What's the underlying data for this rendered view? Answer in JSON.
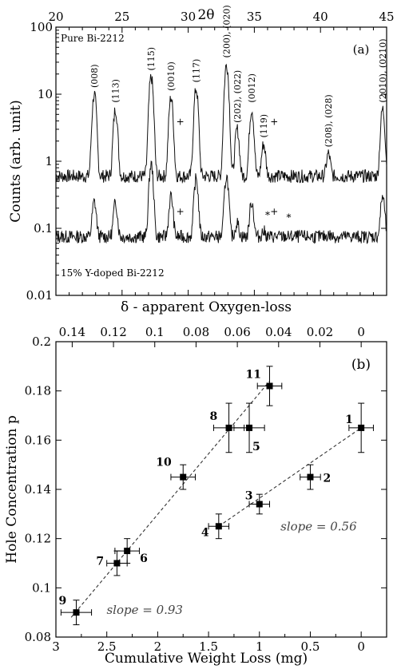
{
  "chart_data": [
    {
      "type": "line",
      "panel_label": "(a)",
      "top_axis_label": "2θ",
      "ylabel": "Counts (arb. unit)",
      "xlim": [
        20,
        45
      ],
      "ylim": [
        0.01,
        100
      ],
      "yscale": "log",
      "x_ticks": [
        "20",
        "25",
        "30",
        "35",
        "40",
        "45"
      ],
      "y_ticks": [
        "0.01",
        "0.1",
        "1",
        "10",
        "100"
      ],
      "annotations": [
        "Pure Bi-2212",
        "15% Y-doped Bi-2212"
      ],
      "peak_labels": [
        "(008)",
        "(113)",
        "(115)",
        "(0010)",
        "(117)",
        "(200), (020)",
        "(202), (022)",
        "(0012)",
        "(119)",
        "(208), (028)",
        "(2010), (0210)"
      ],
      "peaks": [
        {
          "x": 22.9,
          "upper": 10,
          "lower": 0.25
        },
        {
          "x": 24.5,
          "upper": 6,
          "lower": 0.24
        },
        {
          "x": 27.2,
          "upper": 18,
          "lower": 0.9
        },
        {
          "x": 28.7,
          "upper": 9,
          "lower": 0.3
        },
        {
          "x": 30.6,
          "upper": 12,
          "lower": 0.55
        },
        {
          "x": 32.9,
          "upper": 28,
          "lower": 0.6
        },
        {
          "x": 33.7,
          "upper": 3,
          "lower": 0.12
        },
        {
          "x": 34.8,
          "upper": 6,
          "lower": 0.25
        },
        {
          "x": 35.7,
          "upper": 1.8,
          "lower": 0.09
        },
        {
          "x": 40.6,
          "upper": 1.3,
          "lower": 0.08
        },
        {
          "x": 44.7,
          "upper": 6,
          "lower": 0.3
        }
      ],
      "impurity_markers": [
        {
          "symbol": "+",
          "x": 29.4,
          "y": 3.5
        },
        {
          "symbol": "+",
          "x": 36.5,
          "y": 3.5
        },
        {
          "symbol": "+",
          "x": 29.4,
          "y": 0.16
        },
        {
          "symbol": "+",
          "x": 36.5,
          "y": 0.16
        },
        {
          "symbol": "*",
          "x": 36.0,
          "y": 0.14
        },
        {
          "symbol": "*",
          "x": 37.6,
          "y": 0.13
        }
      ],
      "series": [
        {
          "name": "Pure Bi-2212",
          "baseline": 0.6
        },
        {
          "name": "15% Y-doped Bi-2212",
          "baseline": 0.075
        }
      ]
    },
    {
      "type": "scatter",
      "panel_label": "(b)",
      "xlabel": "Cumulative Weight Loss (mg)",
      "ylabel": "Hole Concentration p",
      "top_axis_label": "δ - apparent Oxygen-loss",
      "xlim": [
        3,
        -0.25
      ],
      "ylim": [
        0.08,
        0.2
      ],
      "x_ticks": [
        "3",
        "2.5",
        "2",
        "1.5",
        "1",
        "0.5",
        "0"
      ],
      "y_ticks": [
        "0.08",
        "0.1",
        "0.12",
        "0.14",
        "0.16",
        "0.18",
        "0.2"
      ],
      "top_ticks": [
        "0.14",
        "0.12",
        "0.1",
        "0.08",
        "0.06",
        "0.04",
        "0.02",
        "0"
      ],
      "points": [
        {
          "label": "1",
          "x": 0.0,
          "y": 0.165,
          "xerr": 0.12,
          "yerr": 0.01
        },
        {
          "label": "2",
          "x": 0.5,
          "y": 0.145,
          "xerr": 0.1,
          "yerr": 0.005
        },
        {
          "label": "3",
          "x": 1.0,
          "y": 0.134,
          "xerr": 0.1,
          "yerr": 0.004
        },
        {
          "label": "4",
          "x": 1.4,
          "y": 0.125,
          "xerr": 0.1,
          "yerr": 0.005
        },
        {
          "label": "5",
          "x": 1.1,
          "y": 0.165,
          "xerr": 0.15,
          "yerr": 0.01
        },
        {
          "label": "6",
          "x": 2.3,
          "y": 0.115,
          "xerr": 0.12,
          "yerr": 0.005
        },
        {
          "label": "7",
          "x": 2.4,
          "y": 0.11,
          "xerr": 0.1,
          "yerr": 0.005
        },
        {
          "label": "8",
          "x": 1.3,
          "y": 0.165,
          "xerr": 0.15,
          "yerr": 0.01
        },
        {
          "label": "9",
          "x": 2.8,
          "y": 0.09,
          "xerr": 0.15,
          "yerr": 0.005
        },
        {
          "label": "10",
          "x": 1.75,
          "y": 0.145,
          "xerr": 0.12,
          "yerr": 0.005
        },
        {
          "label": "11",
          "x": 0.9,
          "y": 0.182,
          "xerr": 0.12,
          "yerr": 0.008
        }
      ],
      "fit_lines": [
        {
          "label": "slope = 0.93",
          "from": [
            2.85,
            0.088
          ],
          "to": [
            0.9,
            0.184
          ]
        },
        {
          "label": "slope = 0.56",
          "from": [
            1.4,
            0.125
          ],
          "to": [
            0.0,
            0.165
          ]
        }
      ]
    }
  ]
}
